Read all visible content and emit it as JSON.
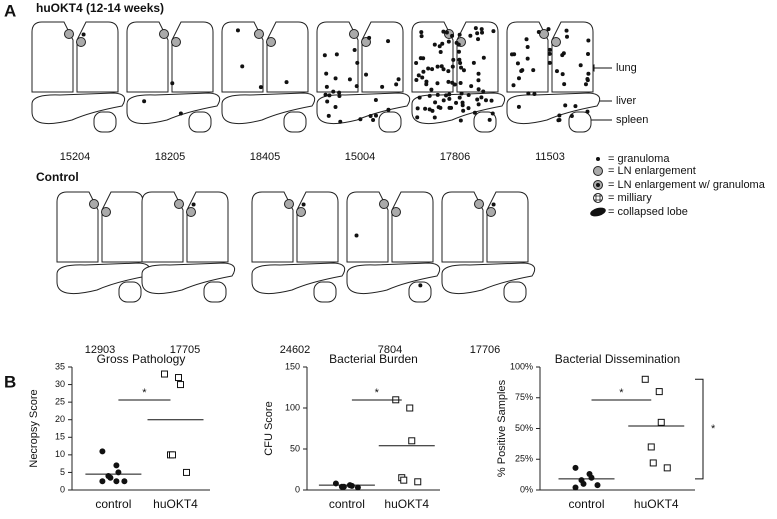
{
  "panel_a": {
    "label": "A",
    "group1": {
      "title": "huOKT4 (12-14 weeks)",
      "animals": [
        "15204",
        "18205",
        "18405",
        "15004",
        "17806",
        "11503"
      ]
    },
    "group2": {
      "title": "Control",
      "animals": [
        "12903",
        "17705",
        "24602",
        "7804",
        "17706"
      ]
    },
    "organ_labels": [
      "lung",
      "liver",
      "spleen"
    ],
    "legend": [
      "= granuloma",
      "= LN enlargement",
      "= LN enlargement w/ granuloma",
      "= milliary",
      "= collapsed lobe"
    ]
  },
  "panel_b": {
    "label": "B"
  },
  "chart_data": [
    {
      "type": "scatter",
      "title": "Gross Pathology",
      "ylabel": "Necropsy Score",
      "categories": [
        "control",
        "huOKT4"
      ],
      "groups": [
        {
          "values": [
            11,
            7,
            5,
            4,
            3.5,
            2.5,
            2.5,
            2.5
          ],
          "center": 4.5,
          "marker": "circle"
        },
        {
          "values": [
            33,
            32,
            30,
            10,
            10,
            5
          ],
          "center": 20,
          "marker": "square"
        }
      ],
      "ylim": [
        0,
        35
      ],
      "yticks": [
        0,
        5,
        10,
        15,
        20,
        25,
        30,
        35
      ],
      "significance_label": "*"
    },
    {
      "type": "scatter",
      "title": "Bacterial Burden",
      "ylabel": "CFU Score",
      "categories": [
        "control",
        "huOKT4"
      ],
      "groups": [
        {
          "values": [
            8,
            6,
            5,
            4,
            4,
            3
          ],
          "center": 6,
          "marker": "circle"
        },
        {
          "values": [
            110,
            100,
            60,
            15,
            12,
            10
          ],
          "center": 54,
          "marker": "square"
        }
      ],
      "ylim": [
        0,
        150
      ],
      "yticks": [
        0,
        50,
        100,
        150
      ],
      "significance_label": "*"
    },
    {
      "type": "scatter",
      "title": "Bacterial Dissemination",
      "ylabel": "% Positive Samples",
      "categories": [
        "control",
        "huOKT4"
      ],
      "groups": [
        {
          "values": [
            18,
            13,
            10,
            8,
            5,
            4,
            2
          ],
          "center": 9,
          "marker": "circle"
        },
        {
          "values": [
            90,
            80,
            55,
            35,
            22,
            18
          ],
          "center": 52,
          "marker": "square"
        }
      ],
      "ylim": [
        0,
        100
      ],
      "yticks": [
        {
          "value": 0,
          "label": "0%"
        },
        {
          "value": 25,
          "label": "25%"
        },
        {
          "value": 50,
          "label": "50%"
        },
        {
          "value": 75,
          "label": "75%"
        },
        {
          "value": 100,
          "label": "100%"
        }
      ],
      "significance_label": "*",
      "bracket_label": "*"
    }
  ]
}
